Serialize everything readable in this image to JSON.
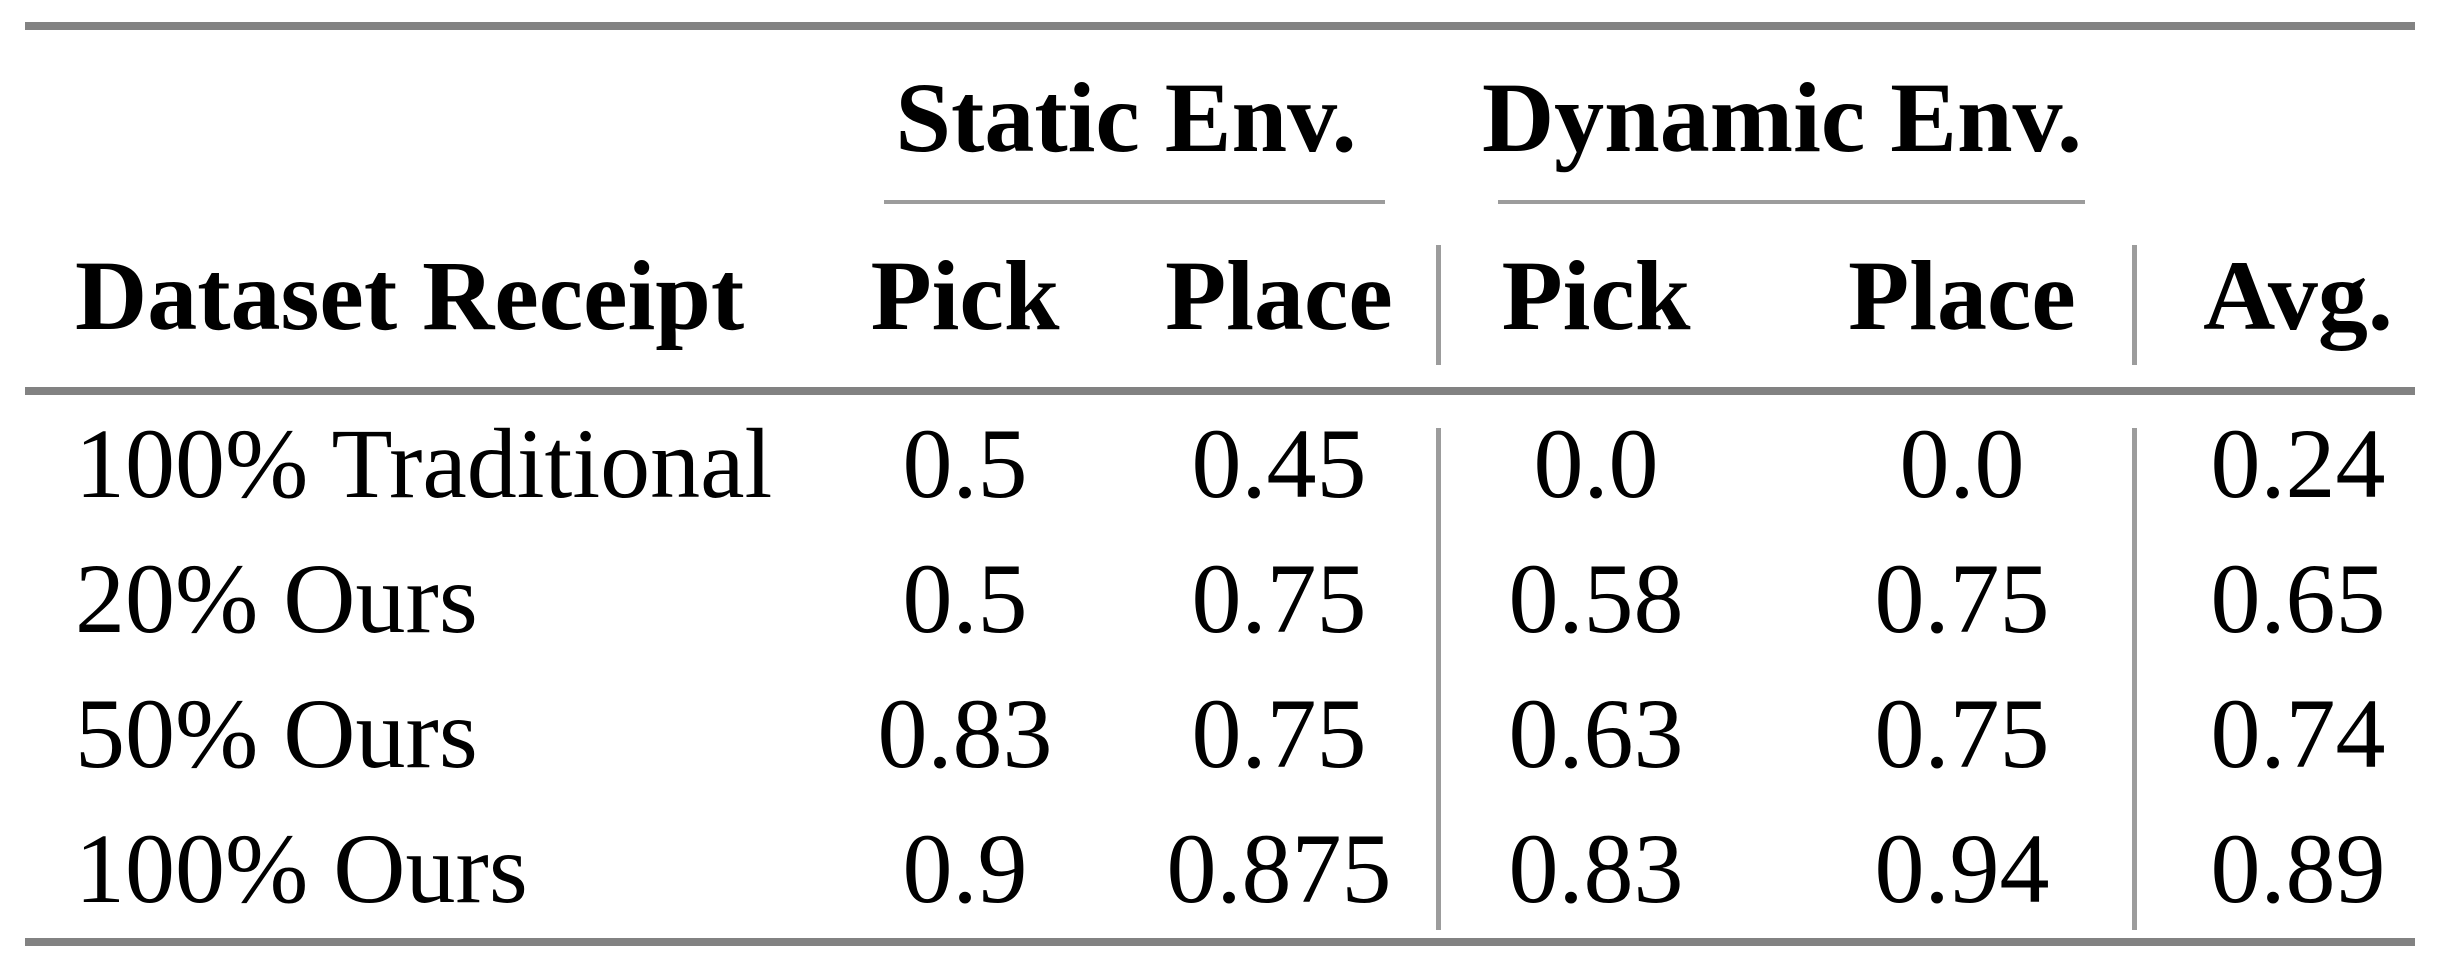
{
  "colors": {
    "background": "#ffffff",
    "text": "#000000",
    "rule_thick": "#828282",
    "rule_thin": "#9c9c9c"
  },
  "table": {
    "column_groups": {
      "static": "Static Env.",
      "dynamic": "Dynamic Env."
    },
    "headers": {
      "row_label": "Dataset Receipt",
      "static_pick": "Pick",
      "static_place": "Place",
      "dynamic_pick": "Pick",
      "dynamic_place": "Place",
      "avg": "Avg."
    },
    "rows": [
      {
        "label": "100% Traditional",
        "static_pick": "0.5",
        "static_place": "0.45",
        "dynamic_pick": "0.0",
        "dynamic_place": "0.0",
        "avg": "0.24"
      },
      {
        "label": "20% Ours",
        "static_pick": "0.5",
        "static_place": "0.75",
        "dynamic_pick": "0.58",
        "dynamic_place": "0.75",
        "avg": "0.65"
      },
      {
        "label": "50% Ours",
        "static_pick": "0.83",
        "static_place": "0.75",
        "dynamic_pick": "0.63",
        "dynamic_place": "0.75",
        "avg": "0.74"
      },
      {
        "label": "100% Ours",
        "static_pick": "0.9",
        "static_place": "0.875",
        "dynamic_pick": "0.83",
        "dynamic_place": "0.94",
        "avg": "0.89"
      }
    ]
  },
  "chart_data": {
    "type": "table",
    "columns": [
      "Dataset Receipt",
      "Static Env. Pick",
      "Static Env. Place",
      "Dynamic Env. Pick",
      "Dynamic Env. Place",
      "Avg."
    ],
    "rows": [
      [
        "100% Traditional",
        0.5,
        0.45,
        0.0,
        0.0,
        0.24
      ],
      [
        "20% Ours",
        0.5,
        0.75,
        0.58,
        0.75,
        0.65
      ],
      [
        "50% Ours",
        0.83,
        0.75,
        0.63,
        0.75,
        0.74
      ],
      [
        "100% Ours",
        0.9,
        0.875,
        0.83,
        0.94,
        0.89
      ]
    ]
  }
}
